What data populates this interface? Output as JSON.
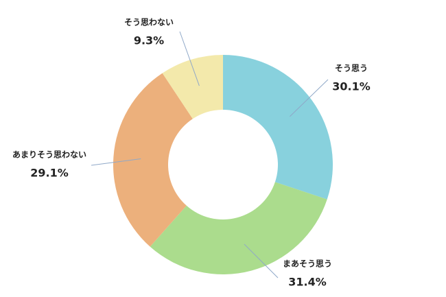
{
  "chart_data": {
    "type": "donut",
    "categories": [
      "そう思う",
      "まあそう思う",
      "あまりそう思わない",
      "そう思わない"
    ],
    "values": [
      30.1,
      31.4,
      29.1,
      9.3
    ],
    "value_labels": [
      "30.1%",
      "31.4%",
      "29.1%",
      "9.3%"
    ],
    "colors": [
      "#88d1dd",
      "#abdc8d",
      "#ecb07c",
      "#f3e9ab"
    ]
  }
}
